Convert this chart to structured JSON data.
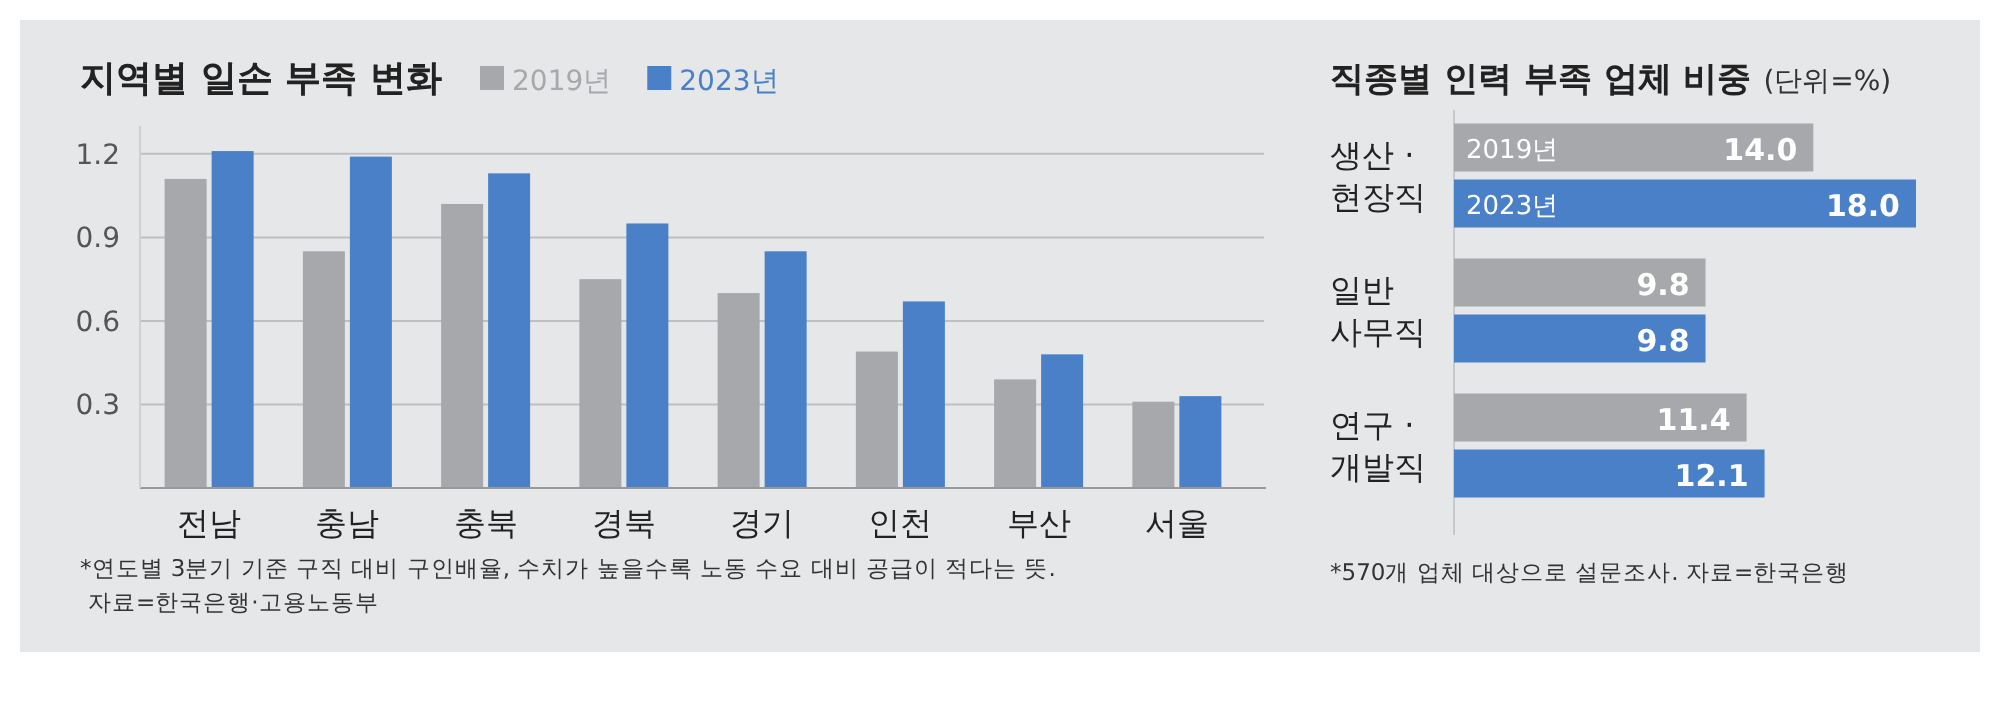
{
  "chart_data": [
    {
      "type": "bar",
      "title": "지역별 일손 부족 변화",
      "categories": [
        "전남",
        "충남",
        "충북",
        "경북",
        "경기",
        "인천",
        "부산",
        "서울"
      ],
      "series": [
        {
          "name": "2019년",
          "color": "#a6a8ab",
          "values": [
            1.11,
            0.85,
            1.02,
            0.75,
            0.7,
            0.49,
            0.39,
            0.31
          ]
        },
        {
          "name": "2023년",
          "color": "#4a80c8",
          "values": [
            1.21,
            1.19,
            1.13,
            0.95,
            0.85,
            0.67,
            0.48,
            0.33
          ]
        }
      ],
      "ylim": [
        0,
        1.3
      ],
      "yticks": [
        0.3,
        0.6,
        0.9,
        1.2
      ],
      "grid": "y",
      "legend": "top",
      "annotations": [
        "*연도별 3분기 기준 구직 대비 구인배율, 수치가 높을수록 노동 수요 대비 공급이 적다는 뜻.",
        "자료=한국은행·고용노동부"
      ]
    },
    {
      "type": "bar",
      "orientation": "horizontal",
      "title": "직종별 인력 부족 업체 비중",
      "subtitle": "(단위=%)",
      "categories": [
        "생산 ·\n현장직",
        "일반\n사무직",
        "연구 ·\n개발직"
      ],
      "series": [
        {
          "name": "2019년",
          "color": "#a6a8ab",
          "values": [
            14.0,
            9.8,
            11.4
          ],
          "value_labels": [
            "14.0",
            "9.8",
            "11.4"
          ]
        },
        {
          "name": "2023년",
          "color": "#4a80c8",
          "values": [
            18.0,
            9.8,
            12.1
          ],
          "value_labels": [
            "18.0",
            "9.8",
            "12.1"
          ]
        }
      ],
      "annotations": [
        "*570개 업체 대상으로 설문조사. 자료=한국은행"
      ]
    }
  ]
}
